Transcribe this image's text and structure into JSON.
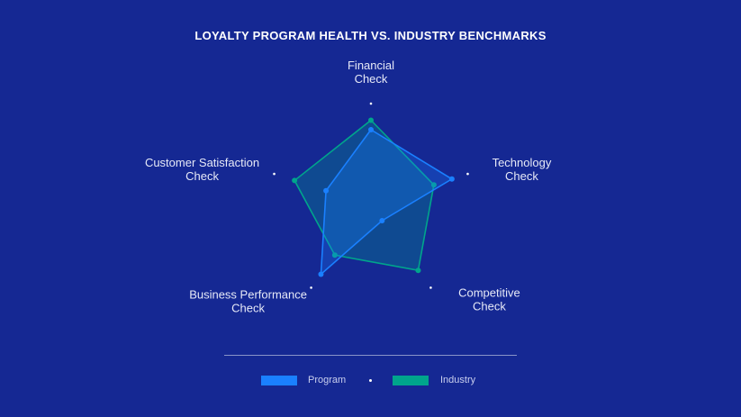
{
  "chart_data": {
    "type": "radar",
    "title": "LOYALTY PROGRAM HEALTH VS. INDUSTRY BENCHMARKS",
    "axes": [
      [
        "Financial",
        "Check"
      ],
      [
        "Technology",
        "Check"
      ],
      [
        "Competitive",
        "Check"
      ],
      [
        "Business Performance",
        "Check"
      ],
      [
        "Customer Satisfaction",
        "Check"
      ]
    ],
    "range": [
      0,
      100
    ],
    "series": [
      {
        "name": "Program",
        "color": "#1a80ff",
        "values": [
          80,
          90,
          20,
          90,
          50
        ]
      },
      {
        "name": "Industry",
        "color": "#00a58c",
        "values": [
          90,
          70,
          85,
          65,
          85
        ]
      }
    ],
    "legend_position": "bottom"
  }
}
